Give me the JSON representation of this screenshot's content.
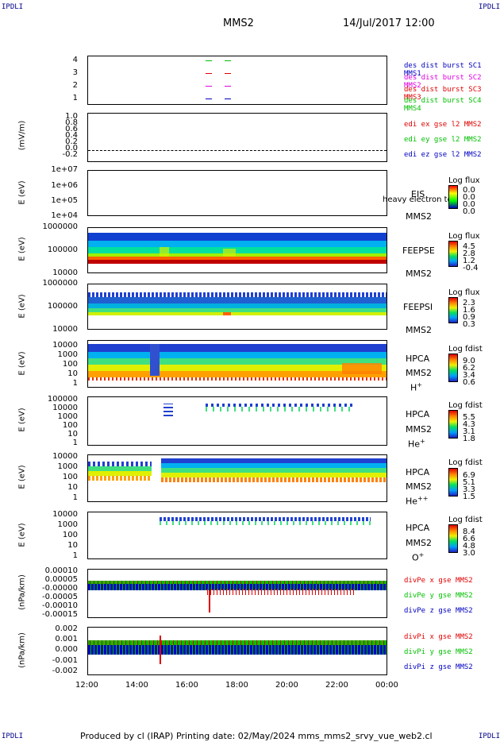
{
  "corners": {
    "tl": "IPDLI",
    "tr": "IPDLI",
    "bl": "IPDLI",
    "br": "IPDLI"
  },
  "header": {
    "title": "MMS2",
    "datetime": "14/Jul/2017 12:00"
  },
  "footer": {
    "text": "Produced by cl (IRAP)   Printing date: 02/May/2024   mms_mms2_srvy_vue_web2.cl"
  },
  "x_ticks": [
    "12:00",
    "14:00",
    "16:00",
    "18:00",
    "20:00",
    "22:00",
    "00:00"
  ],
  "panels": {
    "p1": {
      "yticks": [
        "4",
        "3",
        "2",
        "1"
      ],
      "legend": [
        "des dist burst SC1 MMS1",
        "des dist burst SC2 MMS2",
        "des dist burst SC3 MMS3",
        "des dist burst SC4 MMS4"
      ]
    },
    "p2": {
      "ylabel": "(mV/m)",
      "yticks": [
        "1.0",
        "0.8",
        "0.6",
        "0.4",
        "0.2",
        "0.0",
        "-0.2"
      ],
      "legend": [
        "edi ex gse l2 MMS2",
        "edi ey gse l2 MMS2",
        "edi ez gse l2 MMS2"
      ]
    },
    "p3": {
      "ylabel": "E (eV)",
      "yticks": [
        "1e+07",
        "1e+06",
        "1e+05",
        "1e+04"
      ],
      "label1": "EIS",
      "label2": "MMS2",
      "overlay": "heavy electron to",
      "cb_title": "Log flux",
      "cb_values": [
        "0.0",
        "0.0",
        "0.0",
        "0.0"
      ]
    },
    "p4": {
      "ylabel": "E (eV)",
      "yticks": [
        "1000000",
        "100000",
        "10000"
      ],
      "label1": "FEEPSE",
      "label2": "MMS2",
      "cb_title": "Log flux",
      "cb_values": [
        "4.5",
        "2.8",
        "1.2",
        "-0.4"
      ]
    },
    "p5": {
      "ylabel": "E (eV)",
      "yticks": [
        "1000000",
        "100000",
        "10000"
      ],
      "label1": "FEEPSI",
      "label2": "MMS2",
      "cb_title": "Log flux",
      "cb_values": [
        "2.3",
        "1.6",
        "0.9",
        "0.3"
      ]
    },
    "p6": {
      "ylabel": "E (eV)",
      "yticks": [
        "10000",
        "1000",
        "100",
        "10",
        "1"
      ],
      "label1": "HPCA",
      "label2": "MMS2",
      "species": "H",
      "sup": "+",
      "cb_title": "Log fdist",
      "cb_values": [
        "9.0",
        "6.2",
        "3.4",
        "0.6"
      ]
    },
    "p7": {
      "ylabel": "E (eV)",
      "yticks": [
        "100000",
        "10000",
        "1000",
        "100",
        "10",
        "1"
      ],
      "label1": "HPCA",
      "label2": "MMS2",
      "species": "He",
      "sup": "+",
      "cb_title": "Log fdist",
      "cb_values": [
        "5.5",
        "4.3",
        "3.1",
        "1.8"
      ]
    },
    "p8": {
      "ylabel": "E (eV)",
      "yticks": [
        "10000",
        "1000",
        "100",
        "10",
        "1"
      ],
      "label1": "HPCA",
      "label2": "MMS2",
      "species": "He",
      "sup": "++",
      "cb_title": "Log fdist",
      "cb_values": [
        "6.9",
        "5.1",
        "3.3",
        "1.5"
      ]
    },
    "p9": {
      "ylabel": "E (eV)",
      "yticks": [
        "10000",
        "1000",
        "100",
        "10",
        "1"
      ],
      "label1": "HPCA",
      "label2": "MMS2",
      "species": "O",
      "sup": "+",
      "cb_title": "Log fdist",
      "cb_values": [
        "8.4",
        "6.6",
        "4.8",
        "3.0"
      ]
    },
    "p10": {
      "ylabel": "(nPa/km)",
      "yticks": [
        "0.00010",
        "0.00005",
        "-0.00000",
        "-0.00005",
        "-0.00010",
        "-0.00015"
      ],
      "legend": [
        "divPe x gse MMS2",
        "divPe y gse MMS2",
        "divPe z gse MMS2"
      ]
    },
    "p11": {
      "ylabel": "(nPa/km)",
      "yticks": [
        "0.002",
        "0.001",
        "0.000",
        "-0.001",
        "-0.002"
      ],
      "legend": [
        "divPi x gse MMS2",
        "divPi y gse MMS2",
        "divPi z gse MMS2"
      ]
    }
  },
  "colors": {
    "red": "#e00000",
    "green": "#00c000",
    "blue": "#0000c0",
    "magenta": "#e000e0",
    "cb": [
      "#2020c0",
      "#00a0ff",
      "#00e060",
      "#f0f000",
      "#ff8000",
      "#e00000"
    ]
  }
}
